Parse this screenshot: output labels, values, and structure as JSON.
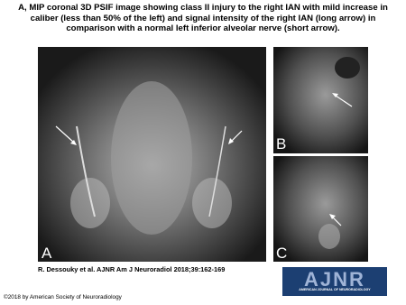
{
  "header": {
    "title": "A, MIP coronal 3D PSIF image showing class II injury to the right IAN with mild increase in caliber (less than 50% of the left) and signal intensity of the right IAN (long arrow) in comparison with a normal left inferior alveolar nerve (short arrow)."
  },
  "panels": [
    {
      "label": "A"
    },
    {
      "label": "B"
    },
    {
      "label": "C"
    }
  ],
  "citation": "R. Dessouky et al. AJNR Am J Neuroradiol 2018;39:162-169",
  "logo": {
    "main": "AJNR",
    "sub": "AMERICAN JOURNAL OF NEURORADIOLOGY"
  },
  "copyright": "©2018 by American Society of Neuroradiology"
}
